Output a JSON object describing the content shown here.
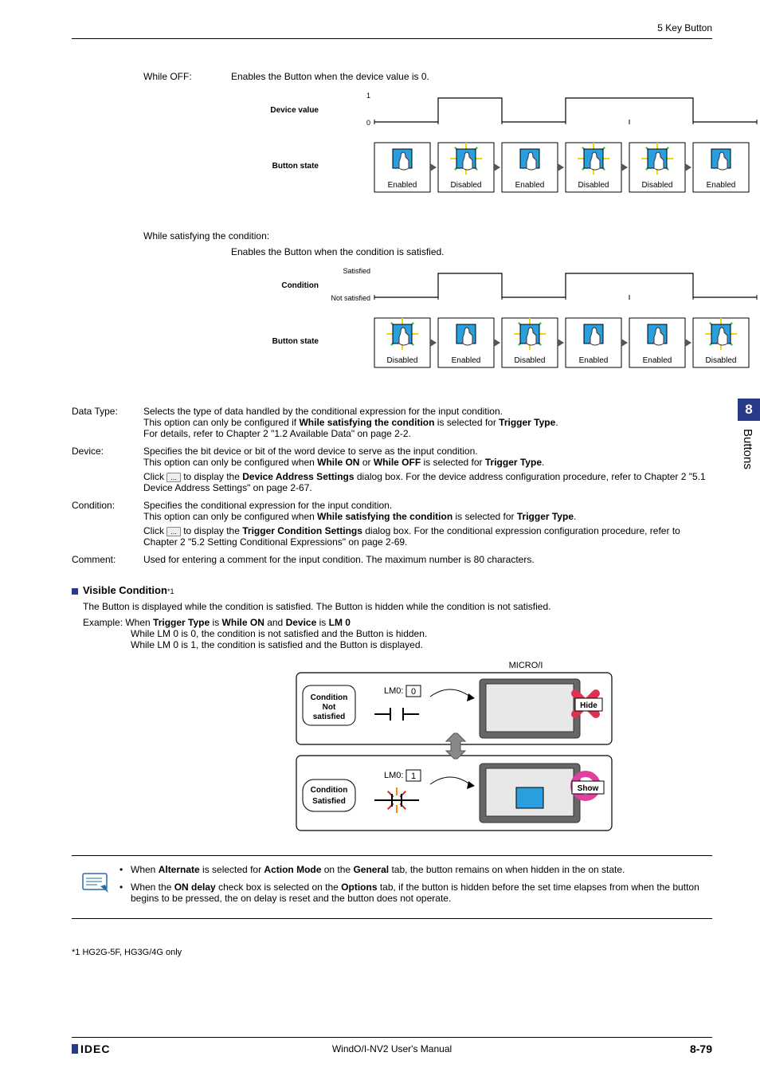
{
  "header": {
    "section": "5 Key Button"
  },
  "chapter_tab": {
    "number": "8",
    "title": "Buttons"
  },
  "while_off": {
    "label": "While OFF:",
    "desc": "Enables the Button when the device value is 0.",
    "diagram": {
      "row1_label": "Device value",
      "y_hi": "1",
      "y_lo": "0",
      "row2_label": "Button state",
      "segments": [
        0,
        1,
        0,
        1,
        1,
        0
      ],
      "states": [
        "Enabled",
        "Disabled",
        "Enabled",
        "Disabled",
        "Disabled",
        "Enabled"
      ],
      "enabled_flags": [
        true,
        false,
        true,
        false,
        false,
        true
      ]
    }
  },
  "while_cond": {
    "label": "While satisfying the condition:",
    "desc": "Enables the Button when the condition is satisfied.",
    "diagram": {
      "row1_label": "Condition",
      "y_hi": "Satisfied",
      "y_lo": "Not satisfied",
      "row2_label": "Button state",
      "segments": [
        0,
        1,
        0,
        1,
        1,
        0
      ],
      "states": [
        "Disabled",
        "Enabled",
        "Disabled",
        "Enabled",
        "Enabled",
        "Disabled"
      ],
      "enabled_flags": [
        false,
        true,
        false,
        true,
        true,
        false
      ]
    }
  },
  "data_type": {
    "label": "Data Type:",
    "l1": "Selects the type of data handled by the conditional expression for the input condition.",
    "l2a": "This option can only be configured if ",
    "l2b": "While satisfying the condition",
    "l2c": " is selected for ",
    "l2d": "Trigger Type",
    "l2e": ".",
    "l3": "For details, refer to Chapter 2 \"1.2 Available Data\" on page 2-2."
  },
  "device": {
    "label": "Device:",
    "l1": "Specifies the bit device or bit of the word device to serve as the input condition.",
    "l2a": "This option can only be configured when ",
    "l2b": "While ON",
    "l2c": " or ",
    "l2d": "While OFF",
    "l2e": " is selected for ",
    "l2f": "Trigger Type",
    "l2g": ".",
    "l3a": "Click ",
    "l3b": " to display the ",
    "l3c": "Device Address Settings",
    "l3d": " dialog box. For the device address configuration procedure, refer to Chapter 2 \"5.1 Device Address Settings\" on page 2-67."
  },
  "condition": {
    "label": "Condition:",
    "l1": "Specifies the conditional expression for the input condition.",
    "l2a": "This option can only be configured when ",
    "l2b": "While satisfying the condition",
    "l2c": " is selected for ",
    "l2d": "Trigger Type",
    "l2e": ".",
    "l3a": "Click ",
    "l3b": " to display the ",
    "l3c": "Trigger Condition Settings",
    "l3d": " dialog box. For the conditional expression configuration procedure, refer to Chapter 2 \"5.2 Setting Conditional Expressions\" on page 2-69."
  },
  "comment": {
    "label": "Comment:",
    "text": "Used for entering a comment for the input condition. The maximum number is 80 characters."
  },
  "visible": {
    "title": "Visible Condition",
    "sup": "*1",
    "l1": "The Button is displayed while the condition is satisfied. The Button is hidden while the condition is not satisfied.",
    "ex_a": "Example: When ",
    "ex_b": "Trigger Type",
    "ex_c": " is ",
    "ex_d": "While ON",
    "ex_e": " and ",
    "ex_f": "Device",
    "ex_g": " is ",
    "ex_h": "LM 0",
    "ex_l2": "While LM 0 is 0, the condition is not satisfied and the Button is hidden.",
    "ex_l3": "While LM 0 is 1, the condition is satisfied and the Button is displayed.",
    "diagram": {
      "title": "MICRO/I",
      "not_sat": "Condition Not satisfied",
      "sat": "Condition Satisfied",
      "lm0_0": "LM0:",
      "lm0_0v": "0",
      "lm0_1": "LM0:",
      "lm0_1v": "1",
      "hide": "Hide",
      "show": "Show"
    }
  },
  "notes": {
    "n1a": "When ",
    "n1b": "Alternate",
    "n1c": " is selected for ",
    "n1d": "Action Mode",
    "n1e": " on the ",
    "n1f": "General",
    "n1g": " tab, the button remains on when hidden in the on state.",
    "n2a": "When the ",
    "n2b": "ON delay",
    "n2c": " check box is selected on the ",
    "n2d": "Options",
    "n2e": " tab, if the button is hidden before the set time elapses from when the button begins to be pressed, the on delay is reset and the button does not operate."
  },
  "footnote": "*1  HG2G-5F, HG3G/4G only",
  "footer": {
    "logo": "IDEC",
    "center": "WindO/I-NV2 User's Manual",
    "page": "8-79"
  },
  "style": {
    "accent": "#2a3a8a",
    "button_blue": "#29a0dd",
    "sparkle_yellow": "#f3d400",
    "sparkle_green": "#2dbb2d",
    "hide_red": "#e03050",
    "show_magenta": "#e040a0"
  }
}
